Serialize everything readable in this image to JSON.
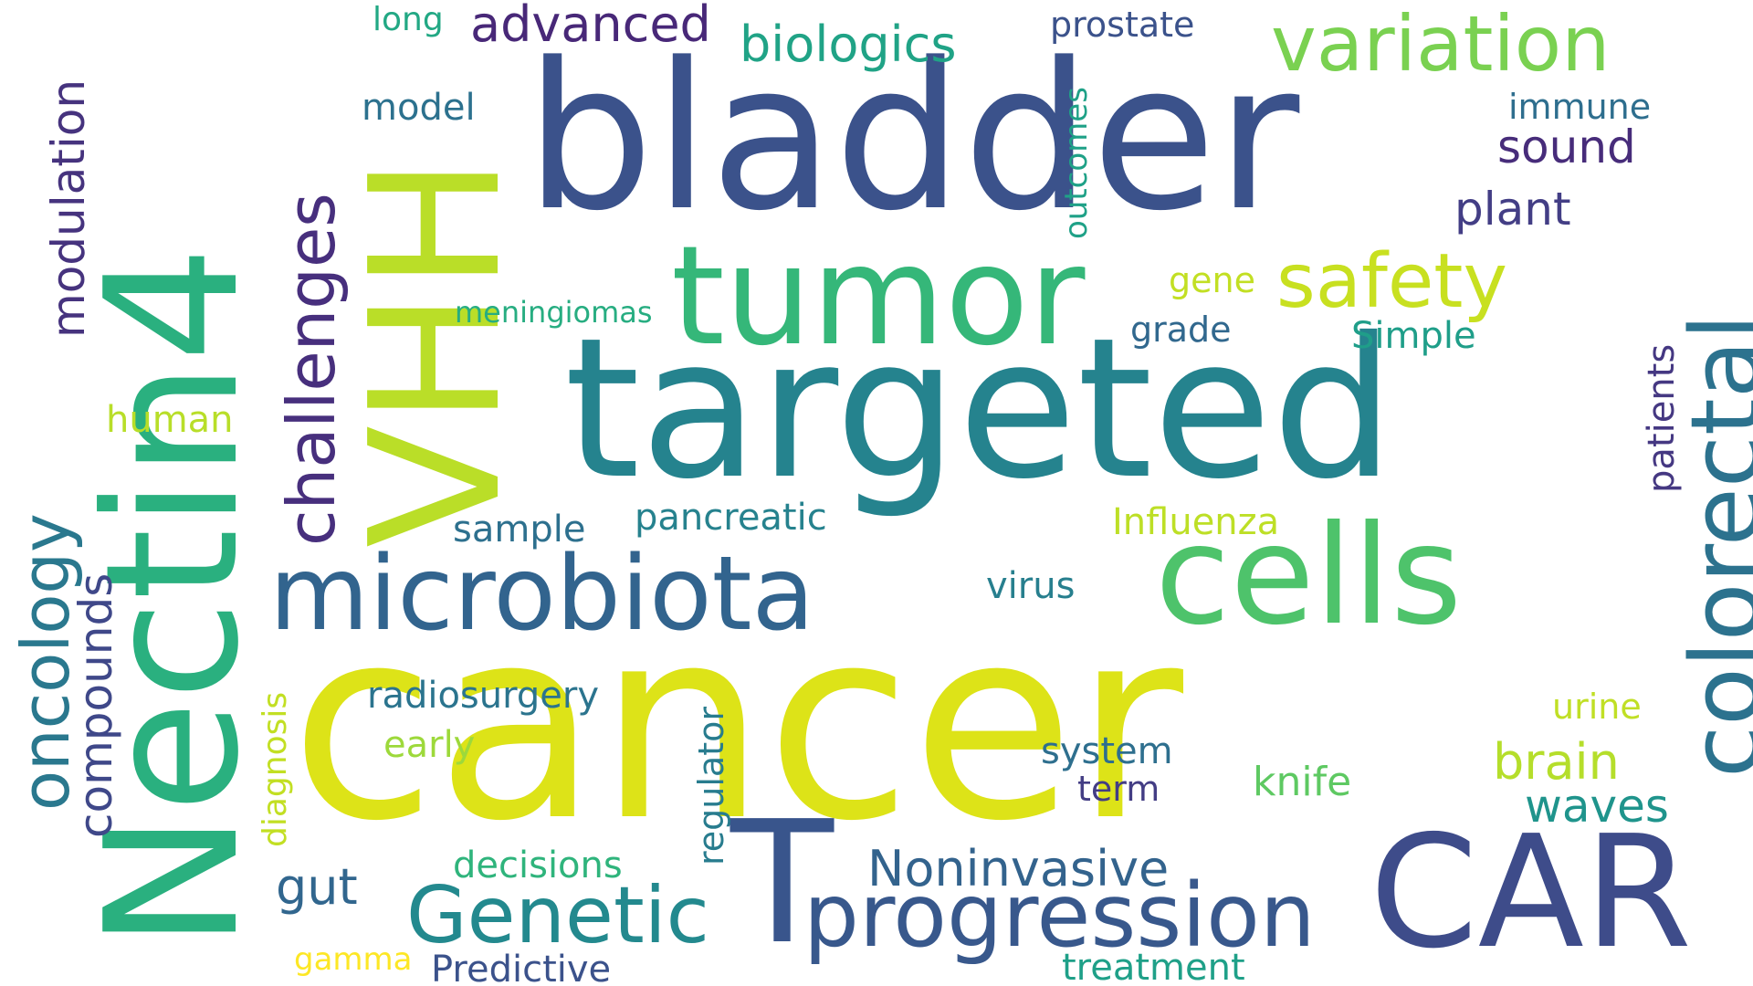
{
  "words": [
    {
      "text": "cancer",
      "color": "#dde318"
    },
    {
      "text": "targeted",
      "color": "#25838e"
    },
    {
      "text": "bladder",
      "color": "#3b528b"
    },
    {
      "text": "Nectin4",
      "color": "#2ab07f"
    },
    {
      "text": "VHH",
      "color": "#bade28"
    },
    {
      "text": "CAR",
      "color": "#3e4c8a"
    },
    {
      "text": "T",
      "color": "#39558c"
    },
    {
      "text": "tumor",
      "color": "#35b779"
    },
    {
      "text": "cells",
      "color": "#4ec36b"
    },
    {
      "text": "microbiota",
      "color": "#32648e"
    },
    {
      "text": "colorectal",
      "color": "#2c728e"
    },
    {
      "text": "progression",
      "color": "#38588c"
    },
    {
      "text": "Genetic",
      "color": "#23898e"
    },
    {
      "text": "variation",
      "color": "#7ad151"
    },
    {
      "text": "safety",
      "color": "#c8e020"
    },
    {
      "text": "challenges",
      "color": "#472f7d"
    },
    {
      "text": "oncology",
      "color": "#2a788e"
    },
    {
      "text": "Noninvasive",
      "color": "#33638d"
    },
    {
      "text": "biologics",
      "color": "#20a386"
    },
    {
      "text": "advanced",
      "color": "#482878"
    },
    {
      "text": "compounds",
      "color": "#3f4889"
    },
    {
      "text": "modulation",
      "color": "#46337e"
    },
    {
      "text": "brain",
      "color": "#b5de2b"
    },
    {
      "text": "waves",
      "color": "#1f948c"
    },
    {
      "text": "sound",
      "color": "#472c7a"
    },
    {
      "text": "plant",
      "color": "#433e85"
    },
    {
      "text": "gut",
      "color": "#31668e"
    },
    {
      "text": "prostate",
      "color": "#3b528b"
    },
    {
      "text": "immune",
      "color": "#2e6e8e"
    },
    {
      "text": "model",
      "color": "#2c718e"
    },
    {
      "text": "long",
      "color": "#22a884"
    },
    {
      "text": "outcomes",
      "color": "#1fa187"
    },
    {
      "text": "gene",
      "color": "#c2df23"
    },
    {
      "text": "grade",
      "color": "#31688e"
    },
    {
      "text": "Simple",
      "color": "#1f9e89"
    },
    {
      "text": "meningiomas",
      "color": "#27ad81"
    },
    {
      "text": "human",
      "color": "#b8de29"
    },
    {
      "text": "patients",
      "color": "#453882"
    },
    {
      "text": "sample",
      "color": "#2d708e"
    },
    {
      "text": "pancreatic",
      "color": "#26828e"
    },
    {
      "text": "Influenza",
      "color": "#bddf26"
    },
    {
      "text": "virus",
      "color": "#277f8e"
    },
    {
      "text": "radiosurgery",
      "color": "#2b748e"
    },
    {
      "text": "regulator",
      "color": "#287c8e"
    },
    {
      "text": "urine",
      "color": "#c0df25"
    },
    {
      "text": "early",
      "color": "#9dd93b"
    },
    {
      "text": "system",
      "color": "#2e6f8e"
    },
    {
      "text": "term",
      "color": "#433d84"
    },
    {
      "text": "knife",
      "color": "#5ec962"
    },
    {
      "text": "diagnosis",
      "color": "#c2df23"
    },
    {
      "text": "decisions",
      "color": "#2fb47c"
    },
    {
      "text": "treatment",
      "color": "#1fa088"
    },
    {
      "text": "gamma",
      "color": "#fde725"
    },
    {
      "text": "Predictive",
      "color": "#3b528b"
    }
  ]
}
